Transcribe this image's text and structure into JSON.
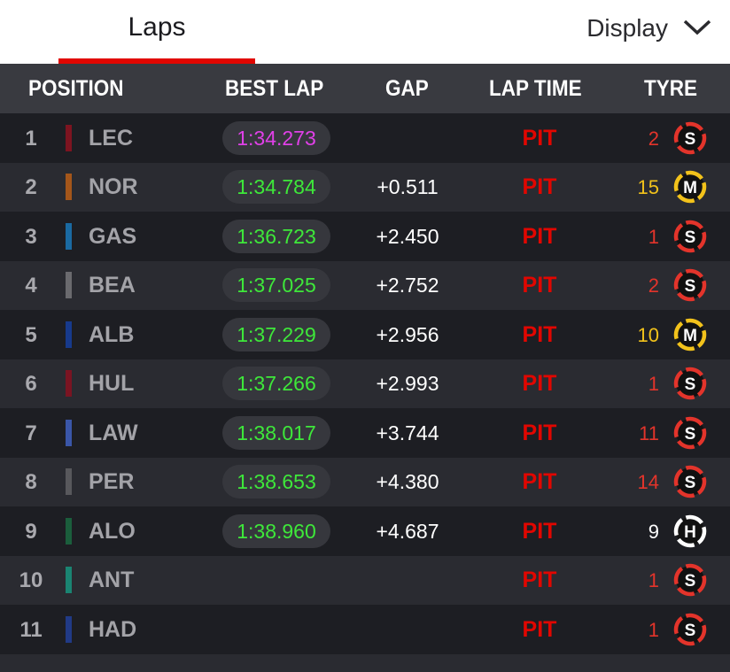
{
  "header": {
    "tab": "Laps",
    "display": "Display"
  },
  "table": {
    "columns": [
      "POSITION",
      "BEST LAP",
      "GAP",
      "LAP TIME",
      "TYRE"
    ],
    "compound_colors": {
      "S": "#e3342b",
      "M": "#f2c21b",
      "H": "#ffffff"
    },
    "rows": [
      {
        "position": 1,
        "team_color": "#7d1420",
        "driver": "LEC",
        "best_lap": "1:34.273",
        "best_lap_color": "#e040e8",
        "lap_time": "PIT",
        "tyre_laps": 2,
        "tyre": "S"
      },
      {
        "position": 2,
        "team_color": "#a4561a",
        "driver": "NOR",
        "best_lap": "1:34.784",
        "best_lap_color": "#3ee83a",
        "gap": "+0.511",
        "lap_time": "PIT",
        "tyre_laps": 15,
        "tyre": "M"
      },
      {
        "position": 3,
        "team_color": "#1a6aa2",
        "driver": "GAS",
        "best_lap": "1:36.723",
        "best_lap_color": "#3ee83a",
        "gap": "+2.450",
        "lap_time": "PIT",
        "tyre_laps": 1,
        "tyre": "S"
      },
      {
        "position": 4,
        "team_color": "#6a6a6e",
        "driver": "BEA",
        "best_lap": "1:37.025",
        "best_lap_color": "#3ee83a",
        "gap": "+2.752",
        "lap_time": "PIT",
        "tyre_laps": 2,
        "tyre": "S"
      },
      {
        "position": 5,
        "team_color": "#173a8c",
        "driver": "ALB",
        "best_lap": "1:37.229",
        "best_lap_color": "#3ee83a",
        "gap": "+2.956",
        "lap_time": "PIT",
        "tyre_laps": 10,
        "tyre": "M"
      },
      {
        "position": 6,
        "team_color": "#7a1422",
        "driver": "HUL",
        "best_lap": "1:37.266",
        "best_lap_color": "#3ee83a",
        "gap": "+2.993",
        "lap_time": "PIT",
        "tyre_laps": 1,
        "tyre": "S"
      },
      {
        "position": 7,
        "team_color": "#3a56a8",
        "driver": "LAW",
        "best_lap": "1:38.017",
        "best_lap_color": "#3ee83a",
        "gap": "+3.744",
        "lap_time": "PIT",
        "tyre_laps": 11,
        "tyre": "S"
      },
      {
        "position": 8,
        "team_color": "#58585c",
        "driver": "PER",
        "best_lap": "1:38.653",
        "best_lap_color": "#3ee83a",
        "gap": "+4.380",
        "lap_time": "PIT",
        "tyre_laps": 14,
        "tyre": "S"
      },
      {
        "position": 9,
        "team_color": "#1b5e3c",
        "driver": "ALO",
        "best_lap": "1:38.960",
        "best_lap_color": "#3ee83a",
        "gap": "+4.687",
        "lap_time": "PIT",
        "tyre_laps": 9,
        "tyre": "H"
      },
      {
        "position": 10,
        "team_color": "#1a8472",
        "driver": "ANT",
        "lap_time": "PIT",
        "tyre_laps": 1,
        "tyre": "S"
      },
      {
        "position": 11,
        "team_color": "#213a86",
        "driver": "HAD",
        "lap_time": "PIT",
        "tyre_laps": 1,
        "tyre": "S"
      }
    ]
  }
}
